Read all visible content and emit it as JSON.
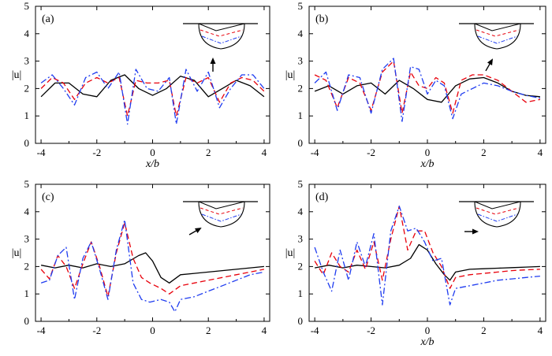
{
  "chart_data": [
    {
      "type": "line",
      "panel_label": "(a)",
      "xlabel": "x/b",
      "ylabel": "|u|",
      "xlim": [
        -4.2,
        4.2
      ],
      "ylim": [
        0,
        5
      ],
      "xticks": [
        -4,
        -2,
        0,
        2,
        4
      ],
      "yticks": [
        0,
        1,
        2,
        3,
        4,
        5
      ],
      "xtick_labels": [
        "-4",
        "-2",
        "0",
        "2",
        "4"
      ],
      "ytick_labels": [
        "0",
        "1",
        "2",
        "3",
        "4",
        "5"
      ],
      "wave_direction": "up",
      "series": [
        {
          "name": "solid-black",
          "color": "#000000",
          "dash": "",
          "x": [
            -4.0,
            -3.5,
            -3.0,
            -2.5,
            -2.0,
            -1.5,
            -1.0,
            -0.5,
            0.0,
            0.5,
            1.0,
            1.5,
            2.0,
            2.5,
            3.0,
            3.5,
            4.0
          ],
          "y": [
            1.7,
            2.2,
            2.2,
            1.8,
            1.7,
            2.3,
            2.5,
            2.0,
            1.75,
            2.0,
            2.45,
            2.3,
            1.7,
            2.0,
            2.3,
            2.1,
            1.7
          ]
        },
        {
          "name": "dashed-red",
          "color": "#e8000b",
          "dash": "7 4",
          "x": [
            -4.0,
            -3.6,
            -3.2,
            -2.8,
            -2.4,
            -2.0,
            -1.6,
            -1.2,
            -0.9,
            -0.6,
            -0.2,
            0.2,
            0.6,
            0.85,
            1.2,
            1.6,
            2.0,
            2.4,
            2.8,
            3.2,
            3.6,
            4.0
          ],
          "y": [
            2.0,
            2.4,
            2.2,
            1.6,
            2.2,
            2.4,
            2.2,
            2.4,
            1.0,
            2.3,
            2.2,
            2.2,
            2.3,
            1.0,
            2.4,
            2.2,
            2.4,
            1.5,
            2.2,
            2.4,
            2.3,
            1.9
          ]
        },
        {
          "name": "dashdot-blue",
          "color": "#1f3cf0",
          "dash": "8 3 2 3",
          "x": [
            -4.0,
            -3.6,
            -3.2,
            -2.8,
            -2.4,
            -2.0,
            -1.6,
            -1.2,
            -0.9,
            -0.6,
            -0.2,
            0.2,
            0.6,
            0.85,
            1.2,
            1.6,
            2.0,
            2.4,
            2.8,
            3.2,
            3.6,
            4.0
          ],
          "y": [
            2.2,
            2.5,
            2.0,
            1.4,
            2.4,
            2.6,
            2.0,
            2.6,
            0.7,
            2.7,
            2.0,
            1.9,
            2.4,
            0.7,
            2.7,
            1.9,
            2.6,
            1.3,
            2.0,
            2.5,
            2.5,
            2.0
          ]
        }
      ]
    },
    {
      "type": "line",
      "panel_label": "(b)",
      "xlabel": "x/b",
      "ylabel": "|u|",
      "xlim": [
        -4.2,
        4.2
      ],
      "ylim": [
        0,
        5
      ],
      "xticks": [
        -4,
        -2,
        0,
        2,
        4
      ],
      "yticks": [
        0,
        1,
        2,
        3,
        4,
        5
      ],
      "xtick_labels": [
        "-4",
        "-2",
        "0",
        "2",
        "4"
      ],
      "ytick_labels": [
        "0",
        "1",
        "2",
        "3",
        "4",
        "5"
      ],
      "wave_direction": "up-right",
      "series": [
        {
          "name": "solid-black",
          "color": "#000000",
          "dash": "",
          "x": [
            -4.0,
            -3.5,
            -3.0,
            -2.5,
            -2.0,
            -1.5,
            -1.0,
            -0.5,
            0.0,
            0.5,
            1.0,
            1.5,
            2.0,
            2.5,
            3.0,
            3.5,
            4.0
          ],
          "y": [
            1.9,
            2.1,
            1.8,
            2.1,
            2.2,
            1.8,
            2.3,
            2.0,
            1.6,
            1.5,
            2.1,
            2.35,
            2.4,
            2.2,
            1.9,
            1.75,
            1.7
          ]
        },
        {
          "name": "dashed-red",
          "color": "#e8000b",
          "dash": "7 4",
          "x": [
            -4.0,
            -3.6,
            -3.2,
            -2.8,
            -2.4,
            -2.0,
            -1.6,
            -1.2,
            -0.9,
            -0.6,
            -0.3,
            0.0,
            0.3,
            0.6,
            0.9,
            1.2,
            1.6,
            2.0,
            2.5,
            3.0,
            3.5,
            4.0
          ],
          "y": [
            2.5,
            2.3,
            1.3,
            2.4,
            2.2,
            1.2,
            2.6,
            3.0,
            1.1,
            2.6,
            2.1,
            2.0,
            2.4,
            2.2,
            1.1,
            2.3,
            2.5,
            2.5,
            2.3,
            1.9,
            1.5,
            1.6
          ]
        },
        {
          "name": "dashdot-blue",
          "color": "#1f3cf0",
          "dash": "8 3 2 3",
          "x": [
            -4.0,
            -3.6,
            -3.2,
            -2.8,
            -2.4,
            -2.0,
            -1.6,
            -1.2,
            -0.9,
            -0.6,
            -0.3,
            0.0,
            0.3,
            0.6,
            0.9,
            1.2,
            1.6,
            2.0,
            2.5,
            3.0,
            3.5,
            4.0
          ],
          "y": [
            2.2,
            2.6,
            1.2,
            2.5,
            2.4,
            1.1,
            2.7,
            3.1,
            0.8,
            2.8,
            2.7,
            1.8,
            2.3,
            2.1,
            0.9,
            1.8,
            2.0,
            2.2,
            2.1,
            1.9,
            1.75,
            1.65
          ]
        }
      ]
    },
    {
      "type": "line",
      "panel_label": "(c)",
      "xlabel": "",
      "ylabel": "|u|",
      "xlim": [
        -4.2,
        4.2
      ],
      "ylim": [
        0,
        5
      ],
      "xticks": [
        -4,
        -2,
        0,
        2,
        4
      ],
      "yticks": [
        0,
        1,
        2,
        3,
        4,
        5
      ],
      "xtick_labels": [
        "-4",
        "-2",
        "0",
        "2",
        "4"
      ],
      "ytick_labels": [
        "0",
        "1",
        "2",
        "3",
        "4",
        "5"
      ],
      "wave_direction": "right-up",
      "series": [
        {
          "name": "solid-black",
          "color": "#000000",
          "dash": "",
          "x": [
            -4.0,
            -3.5,
            -3.0,
            -2.5,
            -2.0,
            -1.5,
            -1.0,
            -0.5,
            -0.25,
            0.0,
            0.3,
            0.6,
            1.0,
            1.5,
            2.0,
            2.5,
            3.0,
            3.5,
            4.0
          ],
          "y": [
            2.05,
            1.95,
            2.05,
            1.95,
            2.1,
            2.0,
            2.1,
            2.4,
            2.5,
            2.2,
            1.6,
            1.4,
            1.7,
            1.75,
            1.8,
            1.85,
            1.9,
            1.95,
            2.0
          ]
        },
        {
          "name": "dashed-red",
          "color": "#e8000b",
          "dash": "7 4",
          "x": [
            -4.0,
            -3.7,
            -3.4,
            -3.1,
            -2.8,
            -2.5,
            -2.2,
            -1.9,
            -1.6,
            -1.3,
            -1.0,
            -0.7,
            -0.4,
            -0.1,
            0.3,
            0.6,
            1.0,
            1.5,
            2.0,
            2.5,
            3.0,
            3.5,
            4.0
          ],
          "y": [
            1.9,
            1.55,
            2.4,
            2.0,
            1.2,
            2.1,
            2.9,
            2.0,
            0.9,
            2.5,
            3.6,
            2.3,
            1.6,
            1.4,
            1.2,
            1.0,
            1.3,
            1.4,
            1.5,
            1.6,
            1.7,
            1.8,
            1.9
          ]
        },
        {
          "name": "dashdot-blue",
          "color": "#1f3cf0",
          "dash": "8 3 2 3",
          "x": [
            -4.0,
            -3.7,
            -3.4,
            -3.1,
            -2.8,
            -2.5,
            -2.2,
            -1.9,
            -1.6,
            -1.3,
            -1.0,
            -0.7,
            -0.4,
            -0.1,
            0.3,
            0.6,
            0.8,
            1.0,
            1.5,
            2.0,
            2.5,
            3.0,
            3.5,
            4.0
          ],
          "y": [
            1.4,
            1.5,
            2.4,
            2.7,
            0.8,
            2.3,
            2.9,
            1.9,
            0.8,
            2.6,
            3.7,
            1.4,
            0.8,
            0.7,
            0.8,
            0.7,
            0.35,
            0.8,
            0.9,
            1.1,
            1.3,
            1.5,
            1.7,
            1.8
          ]
        }
      ]
    },
    {
      "type": "line",
      "panel_label": "(d)",
      "xlabel": "x/b",
      "ylabel": "|u|",
      "xlim": [
        -4.2,
        4.2
      ],
      "ylim": [
        0,
        5
      ],
      "xticks": [
        -4,
        -2,
        0,
        2,
        4
      ],
      "yticks": [
        0,
        1,
        2,
        3,
        4,
        5
      ],
      "xtick_labels": [
        "-4",
        "-2",
        "0",
        "2",
        "4"
      ],
      "ytick_labels": [
        "0",
        "1",
        "2",
        "3",
        "4",
        "5"
      ],
      "wave_direction": "right",
      "series": [
        {
          "name": "solid-black",
          "color": "#000000",
          "dash": "",
          "x": [
            -4.0,
            -3.5,
            -3.0,
            -2.5,
            -2.0,
            -1.5,
            -1.0,
            -0.6,
            -0.3,
            0.0,
            0.3,
            0.6,
            0.8,
            1.0,
            1.5,
            2.0,
            2.5,
            3.0,
            3.5,
            4.0
          ],
          "y": [
            1.95,
            2.05,
            1.95,
            2.05,
            2.0,
            1.95,
            2.05,
            2.3,
            2.8,
            2.6,
            2.1,
            1.7,
            1.5,
            1.8,
            1.9,
            1.92,
            1.94,
            1.96,
            1.98,
            2.0
          ]
        },
        {
          "name": "dashed-red",
          "color": "#e8000b",
          "dash": "7 4",
          "x": [
            -4.0,
            -3.7,
            -3.4,
            -3.1,
            -2.8,
            -2.5,
            -2.2,
            -1.9,
            -1.6,
            -1.3,
            -1.0,
            -0.7,
            -0.4,
            -0.1,
            0.2,
            0.5,
            0.8,
            1.0,
            1.5,
            2.0,
            2.5,
            3.0,
            3.5,
            4.0
          ],
          "y": [
            2.2,
            1.7,
            2.5,
            2.0,
            1.8,
            2.6,
            1.9,
            2.9,
            1.5,
            3.0,
            4.2,
            2.6,
            3.3,
            3.3,
            2.5,
            2.0,
            1.2,
            1.6,
            1.7,
            1.75,
            1.8,
            1.85,
            1.88,
            1.9
          ]
        },
        {
          "name": "dashdot-blue",
          "color": "#1f3cf0",
          "dash": "8 3 2 3",
          "x": [
            -4.0,
            -3.7,
            -3.4,
            -3.1,
            -2.8,
            -2.5,
            -2.2,
            -1.9,
            -1.6,
            -1.3,
            -1.0,
            -0.7,
            -0.4,
            -0.1,
            0.2,
            0.5,
            0.8,
            1.0,
            1.5,
            2.0,
            2.5,
            3.0,
            3.5,
            4.0
          ],
          "y": [
            2.7,
            1.8,
            1.1,
            2.6,
            1.5,
            2.9,
            2.0,
            3.2,
            0.6,
            3.3,
            4.2,
            3.3,
            3.4,
            2.9,
            2.2,
            2.3,
            0.6,
            1.2,
            1.3,
            1.4,
            1.5,
            1.55,
            1.6,
            1.65
          ]
        }
      ]
    }
  ]
}
